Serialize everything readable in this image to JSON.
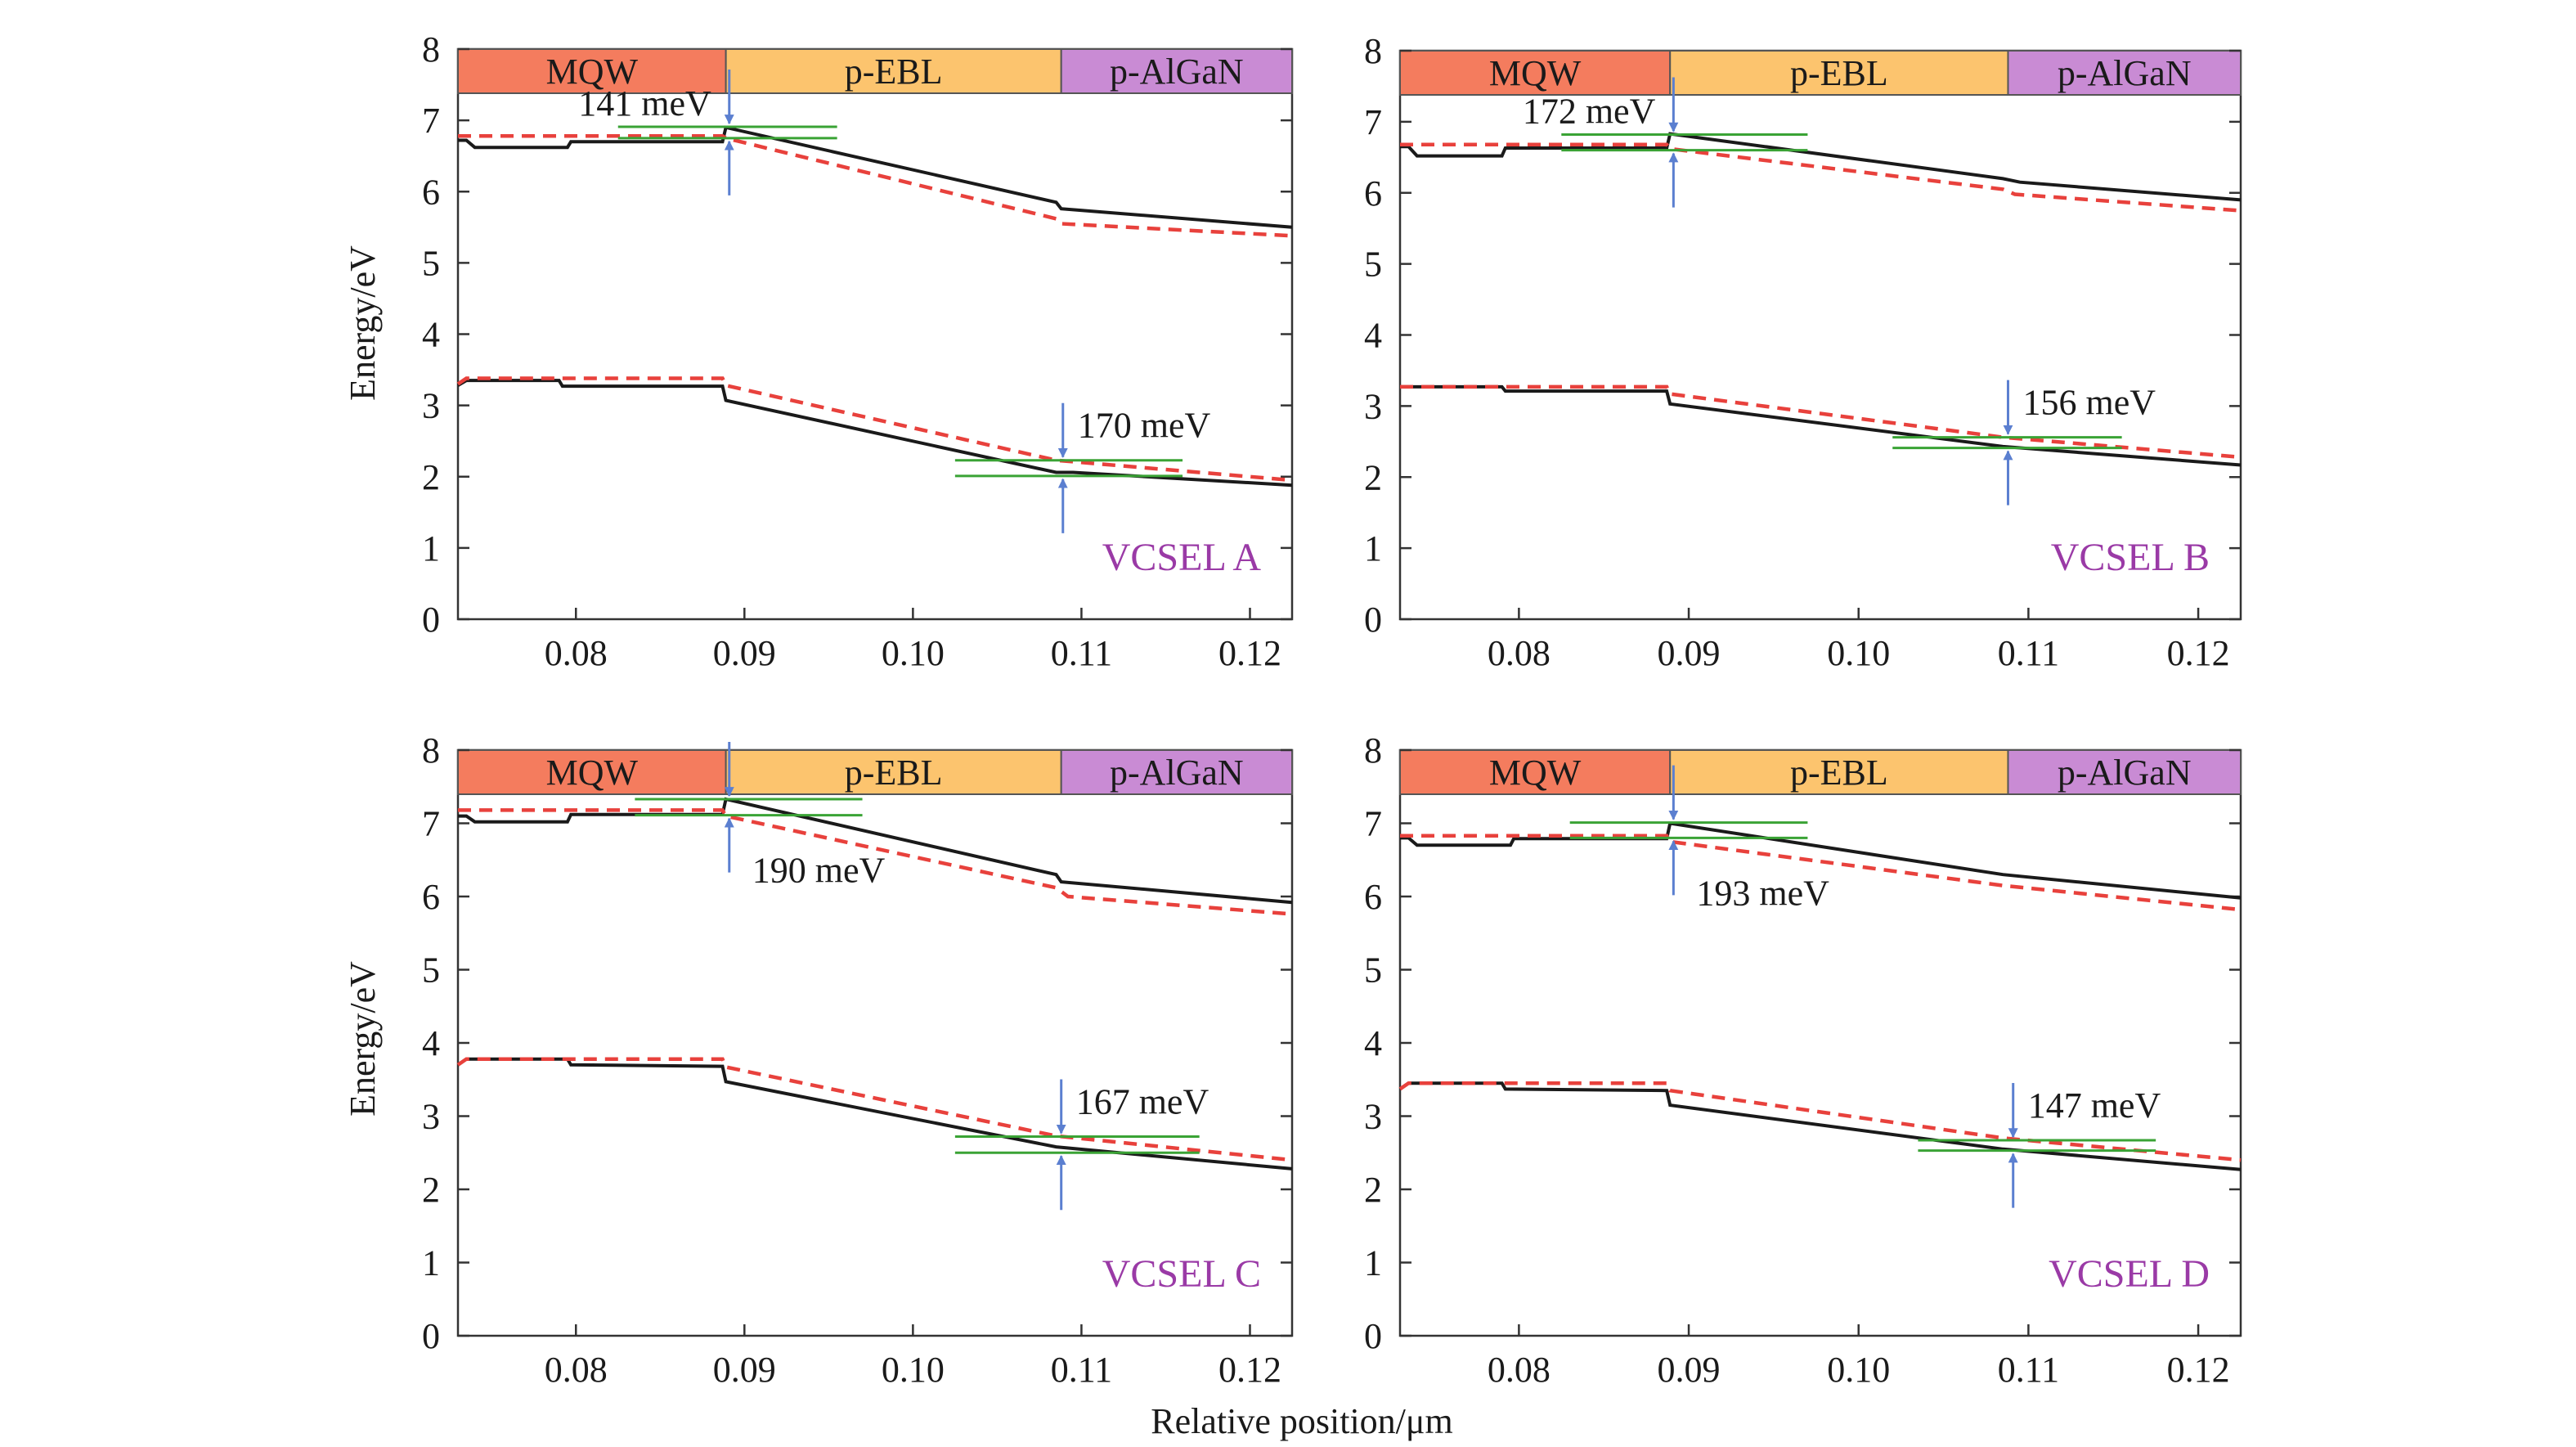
{
  "figure": {
    "xlabel": "Relative position/μm",
    "ylabel": "Energy/eV"
  },
  "colors": {
    "solid_band": "#1a1a1a",
    "dashed_band": "#e8413c",
    "barrier_marker": "#3aa335",
    "arrow": "#5b7fd0",
    "panel_label": "#9a3aa6",
    "region_mqw": "#f47c5e",
    "region_ebl": "#fcc46e",
    "region_algan": "#c98bd4"
  },
  "chart_data": [
    {
      "type": "line",
      "panel_label": "VCSEL A",
      "regions": [
        "MQW",
        "p-EBL",
        "p-AlGaN"
      ],
      "xlim": [
        0.073,
        0.1225
      ],
      "ylim": [
        0,
        8
      ],
      "xticks": [
        0.08,
        0.09,
        0.1,
        0.11,
        0.12
      ],
      "xtick_labels": [
        "0.08",
        "0.09",
        "0.10",
        "0.11",
        "0.12"
      ],
      "yticks": [
        0,
        1,
        2,
        3,
        4,
        5,
        6,
        7,
        8
      ],
      "ytick_labels": [
        "0",
        "1",
        "2",
        "3",
        "4",
        "5",
        "6",
        "7",
        "8"
      ],
      "series": [
        {
          "style": "solid",
          "x": [
            0.073,
            0.0735,
            0.074,
            0.0795,
            0.0797,
            0.0887,
            0.0889,
            0.1085,
            0.1088,
            0.1225
          ],
          "y": [
            6.72,
            6.72,
            6.62,
            6.62,
            6.7,
            6.7,
            6.9,
            5.85,
            5.76,
            5.5
          ]
        },
        {
          "style": "dashed",
          "x": [
            0.073,
            0.0887,
            0.0889,
            0.1085,
            0.1088,
            0.1225
          ],
          "y": [
            6.78,
            6.78,
            6.75,
            5.62,
            5.55,
            5.38
          ]
        },
        {
          "style": "solid",
          "x": [
            0.073,
            0.0735,
            0.079,
            0.0792,
            0.0887,
            0.0889,
            0.1085,
            0.1095,
            0.1225
          ],
          "y": [
            3.28,
            3.35,
            3.35,
            3.27,
            3.27,
            3.07,
            2.06,
            2.06,
            1.88
          ]
        },
        {
          "style": "dashed",
          "x": [
            0.073,
            0.0735,
            0.0887,
            0.0889,
            0.1085,
            0.1225
          ],
          "y": [
            3.3,
            3.38,
            3.38,
            3.28,
            2.23,
            1.95
          ]
        }
      ],
      "annotations": [
        {
          "text": "141 meV",
          "arrow_x": 0.0891,
          "marker_top": 6.91,
          "marker_bottom": 6.75,
          "marker_x": [
            0.0825,
            0.0955
          ]
        },
        {
          "text": "170 meV",
          "arrow_x": 0.1089,
          "marker_top": 2.23,
          "marker_bottom": 2.01,
          "marker_x": [
            0.1025,
            0.116
          ]
        }
      ]
    },
    {
      "type": "line",
      "panel_label": "VCSEL B",
      "regions": [
        "MQW",
        "p-EBL",
        "p-AlGaN"
      ],
      "xlim": [
        0.073,
        0.1225
      ],
      "ylim": [
        0,
        8
      ],
      "xticks": [
        0.08,
        0.09,
        0.1,
        0.11,
        0.12
      ],
      "xtick_labels": [
        "0.08",
        "0.09",
        "0.10",
        "0.11",
        "0.12"
      ],
      "yticks": [
        0,
        1,
        2,
        3,
        4,
        5,
        6,
        7,
        8
      ],
      "ytick_labels": [
        "0",
        "1",
        "2",
        "3",
        "4",
        "5",
        "6",
        "7",
        "8"
      ],
      "series": [
        {
          "style": "solid",
          "x": [
            0.073,
            0.0735,
            0.074,
            0.079,
            0.0792,
            0.0887,
            0.0889,
            0.1085,
            0.1095,
            0.1225
          ],
          "y": [
            6.65,
            6.65,
            6.52,
            6.52,
            6.63,
            6.63,
            6.83,
            6.2,
            6.15,
            5.9
          ]
        },
        {
          "style": "dashed",
          "x": [
            0.073,
            0.0887,
            0.0889,
            0.1085,
            0.1092,
            0.1225
          ],
          "y": [
            6.68,
            6.68,
            6.62,
            6.05,
            5.98,
            5.75
          ]
        },
        {
          "style": "solid",
          "x": [
            0.073,
            0.079,
            0.0792,
            0.0887,
            0.0889,
            0.1085,
            0.1225
          ],
          "y": [
            3.27,
            3.27,
            3.21,
            3.21,
            3.03,
            2.43,
            2.17
          ]
        },
        {
          "style": "dashed",
          "x": [
            0.073,
            0.0887,
            0.0889,
            0.1085,
            0.1225
          ],
          "y": [
            3.27,
            3.27,
            3.17,
            2.56,
            2.28
          ]
        }
      ],
      "annotations": [
        {
          "text": "172 meV",
          "arrow_x": 0.0891,
          "marker_top": 6.82,
          "marker_bottom": 6.6,
          "marker_x": [
            0.0825,
            0.097
          ]
        },
        {
          "text": "156 meV",
          "arrow_x": 0.1088,
          "marker_top": 2.56,
          "marker_bottom": 2.41,
          "marker_x": [
            0.102,
            0.1155
          ]
        }
      ]
    },
    {
      "type": "line",
      "panel_label": "VCSEL C",
      "regions": [
        "MQW",
        "p-EBL",
        "p-AlGaN"
      ],
      "xlim": [
        0.073,
        0.1225
      ],
      "ylim": [
        0,
        8
      ],
      "xticks": [
        0.08,
        0.09,
        0.1,
        0.11,
        0.12
      ],
      "xtick_labels": [
        "0.08",
        "0.09",
        "0.10",
        "0.11",
        "0.12"
      ],
      "yticks": [
        0,
        1,
        2,
        3,
        4,
        5,
        6,
        7,
        8
      ],
      "ytick_labels": [
        "0",
        "1",
        "2",
        "3",
        "4",
        "5",
        "6",
        "7",
        "8"
      ],
      "series": [
        {
          "style": "solid",
          "x": [
            0.073,
            0.0735,
            0.074,
            0.0795,
            0.0797,
            0.0887,
            0.0889,
            0.1085,
            0.1088,
            0.1225
          ],
          "y": [
            7.1,
            7.1,
            7.02,
            7.02,
            7.12,
            7.12,
            7.33,
            6.3,
            6.2,
            5.92
          ]
        },
        {
          "style": "dashed",
          "x": [
            0.073,
            0.0887,
            0.0889,
            0.1085,
            0.1092,
            0.1225
          ],
          "y": [
            7.18,
            7.18,
            7.1,
            6.12,
            6.0,
            5.76
          ]
        },
        {
          "style": "solid",
          "x": [
            0.073,
            0.0735,
            0.0795,
            0.0797,
            0.0887,
            0.0889,
            0.1085,
            0.1225
          ],
          "y": [
            3.7,
            3.78,
            3.78,
            3.7,
            3.68,
            3.47,
            2.58,
            2.28
          ]
        },
        {
          "style": "dashed",
          "x": [
            0.073,
            0.0735,
            0.0887,
            0.0889,
            0.1085,
            0.1225
          ],
          "y": [
            3.7,
            3.78,
            3.78,
            3.67,
            2.73,
            2.4
          ]
        }
      ],
      "annotations": [
        {
          "text": "190 meV",
          "arrow_x": 0.0891,
          "marker_top": 7.33,
          "marker_bottom": 7.11,
          "marker_x": [
            0.0835,
            0.097
          ]
        },
        {
          "text": "167 meV",
          "arrow_x": 0.1088,
          "marker_top": 2.72,
          "marker_bottom": 2.5,
          "marker_x": [
            0.1025,
            0.117
          ]
        }
      ]
    },
    {
      "type": "line",
      "panel_label": "VCSEL D",
      "regions": [
        "MQW",
        "p-EBL",
        "p-AlGaN"
      ],
      "xlim": [
        0.073,
        0.1225
      ],
      "ylim": [
        0,
        8
      ],
      "xticks": [
        0.08,
        0.09,
        0.1,
        0.11,
        0.12
      ],
      "xtick_labels": [
        "0.08",
        "0.09",
        "0.10",
        "0.11",
        "0.12"
      ],
      "yticks": [
        0,
        1,
        2,
        3,
        4,
        5,
        6,
        7,
        8
      ],
      "ytick_labels": [
        "0",
        "1",
        "2",
        "3",
        "4",
        "5",
        "6",
        "7",
        "8"
      ],
      "series": [
        {
          "style": "solid",
          "x": [
            0.073,
            0.0735,
            0.074,
            0.0795,
            0.0797,
            0.0887,
            0.0889,
            0.1085,
            0.1225
          ],
          "y": [
            6.8,
            6.8,
            6.7,
            6.7,
            6.79,
            6.79,
            7.0,
            6.3,
            5.98
          ]
        },
        {
          "style": "dashed",
          "x": [
            0.073,
            0.0887,
            0.0889,
            0.1085,
            0.1225
          ],
          "y": [
            6.83,
            6.83,
            6.75,
            6.15,
            5.82
          ]
        },
        {
          "style": "solid",
          "x": [
            0.073,
            0.0735,
            0.079,
            0.0792,
            0.0887,
            0.0889,
            0.1085,
            0.1225
          ],
          "y": [
            3.37,
            3.45,
            3.45,
            3.37,
            3.35,
            3.15,
            2.55,
            2.27
          ]
        },
        {
          "style": "dashed",
          "x": [
            0.073,
            0.0735,
            0.0887,
            0.0889,
            0.1085,
            0.1225
          ],
          "y": [
            3.37,
            3.45,
            3.45,
            3.35,
            2.7,
            2.4
          ]
        }
      ],
      "annotations": [
        {
          "text": "193 meV",
          "arrow_x": 0.0891,
          "marker_top": 7.01,
          "marker_bottom": 6.8,
          "marker_x": [
            0.083,
            0.097
          ]
        },
        {
          "text": "147 meV",
          "arrow_x": 0.1091,
          "marker_top": 2.67,
          "marker_bottom": 2.53,
          "marker_x": [
            0.1035,
            0.1175
          ]
        }
      ]
    }
  ]
}
